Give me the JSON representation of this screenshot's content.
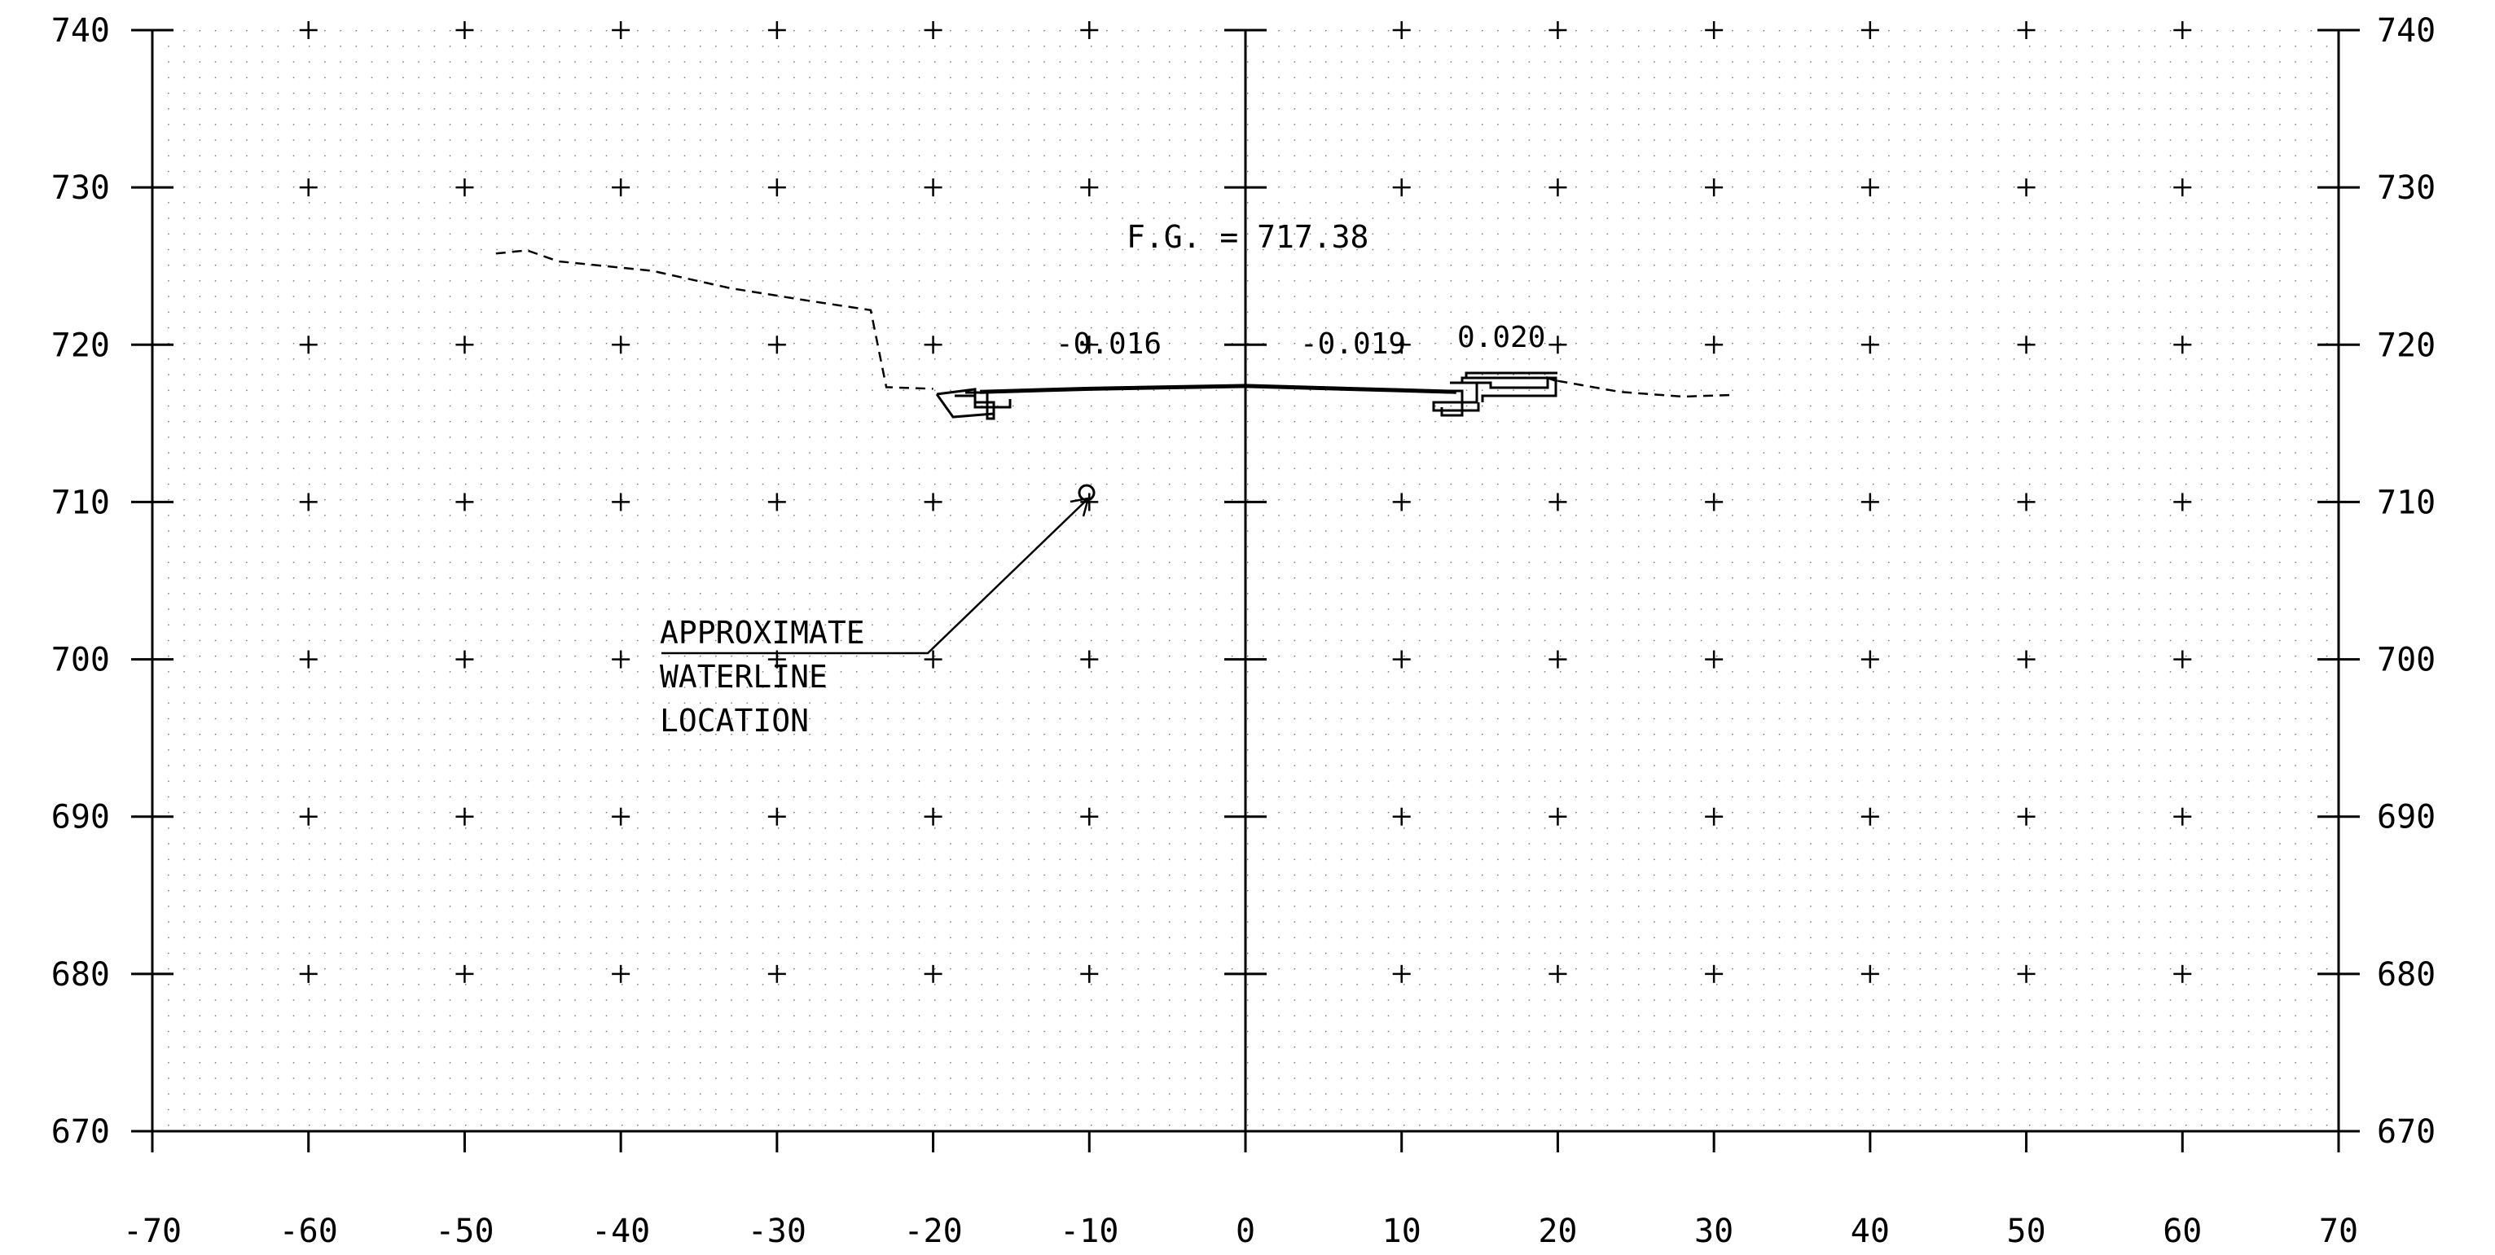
{
  "drawing": {
    "x_ticks": [
      "-70",
      "-60",
      "-50",
      "-40",
      "-30",
      "-20",
      "-10",
      "0",
      "10",
      "20",
      "30",
      "40",
      "50",
      "60",
      "70"
    ],
    "y_ticks": [
      "740",
      "730",
      "720",
      "710",
      "700",
      "690",
      "680",
      "670"
    ],
    "annotations": {
      "finish_grade": "F.G. = 717.38",
      "slope_left": "-0.016",
      "slope_center": "-0.019",
      "slope_right": "0.020",
      "waterline_line1": "APPROXIMATE",
      "waterline_line2": "WATERLINE",
      "waterline_line3": "LOCATION"
    },
    "colors": {
      "line": "#000000",
      "grid_dot": "#6e6e6e",
      "background": "#ffffff"
    }
  },
  "chart_data": {
    "type": "cross-section",
    "x_range": [
      -70,
      70
    ],
    "y_range": [
      670,
      740
    ],
    "grid": true,
    "existing_ground": [
      [
        -48,
        725.8
      ],
      [
        -46,
        726.0
      ],
      [
        -44,
        725.3
      ],
      [
        -38,
        724.7
      ],
      [
        -33,
        723.6
      ],
      [
        -28,
        722.8
      ],
      [
        -24,
        722.2
      ],
      [
        -23,
        717.3
      ],
      [
        -20,
        717.2
      ]
    ],
    "existing_ground_right": [
      [
        20,
        717.7
      ],
      [
        24,
        717.0
      ],
      [
        28,
        716.7
      ],
      [
        31,
        716.8
      ]
    ],
    "proposed_profile": [
      [
        -17,
        717.0
      ],
      [
        -10,
        717.2
      ],
      [
        0,
        717.38
      ],
      [
        10,
        717.1
      ],
      [
        13.5,
        717.0
      ]
    ],
    "waterline_point": [
      -10,
      710.5
    ]
  }
}
